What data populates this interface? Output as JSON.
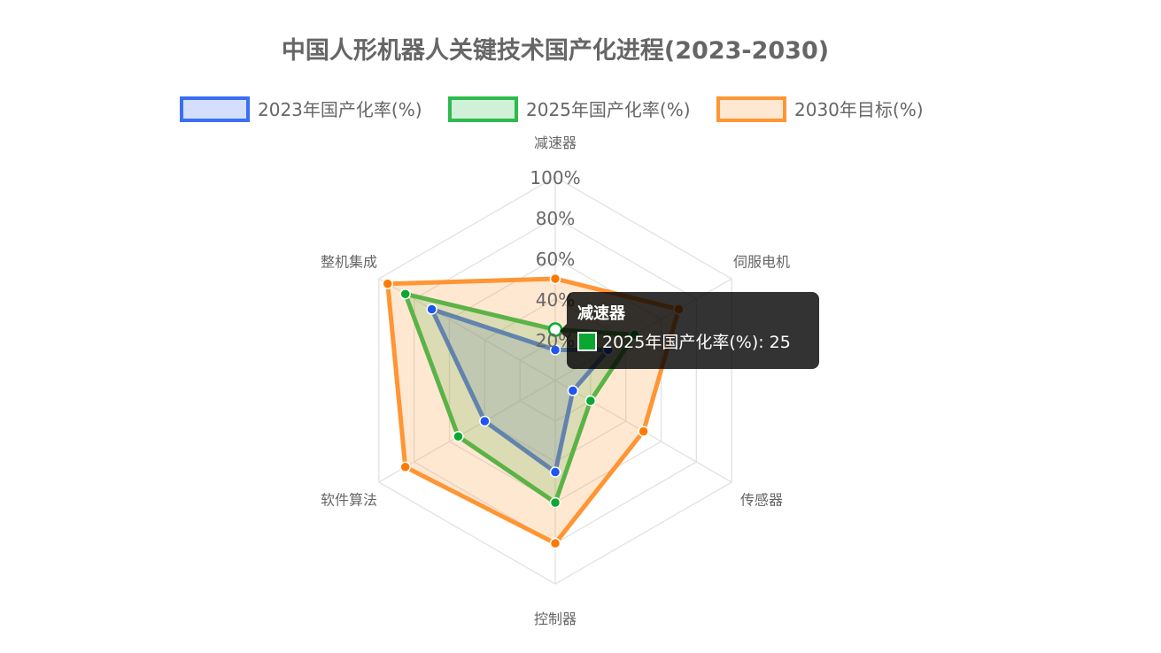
{
  "chart_data": {
    "type": "radar",
    "title": "中国人形机器人关键技术国产化进程(2023-2030)",
    "categories": [
      "减速器",
      "伺服电机",
      "传感器",
      "控制器",
      "软件算法",
      "整机集成"
    ],
    "range": [
      0,
      100
    ],
    "ticks": [
      "20%",
      "40%",
      "60%",
      "80%",
      "100%"
    ],
    "tick_values": [
      20,
      40,
      60,
      80,
      100
    ],
    "legend_position": "top",
    "grid": true,
    "series": [
      {
        "name": "2023年国产化率(%)",
        "values": [
          15,
          30,
          10,
          45,
          40,
          70
        ],
        "color": "#3b6ef5",
        "point_color": "#1f55f0",
        "fill": "rgba(59,110,245,0.22)"
      },
      {
        "name": "2025年国产化率(%)",
        "values": [
          25,
          45,
          20,
          60,
          55,
          85
        ],
        "color": "#2dbb4e",
        "point_color": "#0aa830",
        "fill": "rgba(45,187,78,0.22)"
      },
      {
        "name": "2030年目标(%)",
        "values": [
          50,
          70,
          50,
          80,
          85,
          95
        ],
        "color": "#ff9533",
        "point_color": "#ff7a00",
        "fill": "rgba(255,149,51,0.22)"
      }
    ]
  },
  "tooltip": {
    "title": "减速器",
    "label": "2025年国产化率(%): 25",
    "color": "#0aa830"
  }
}
